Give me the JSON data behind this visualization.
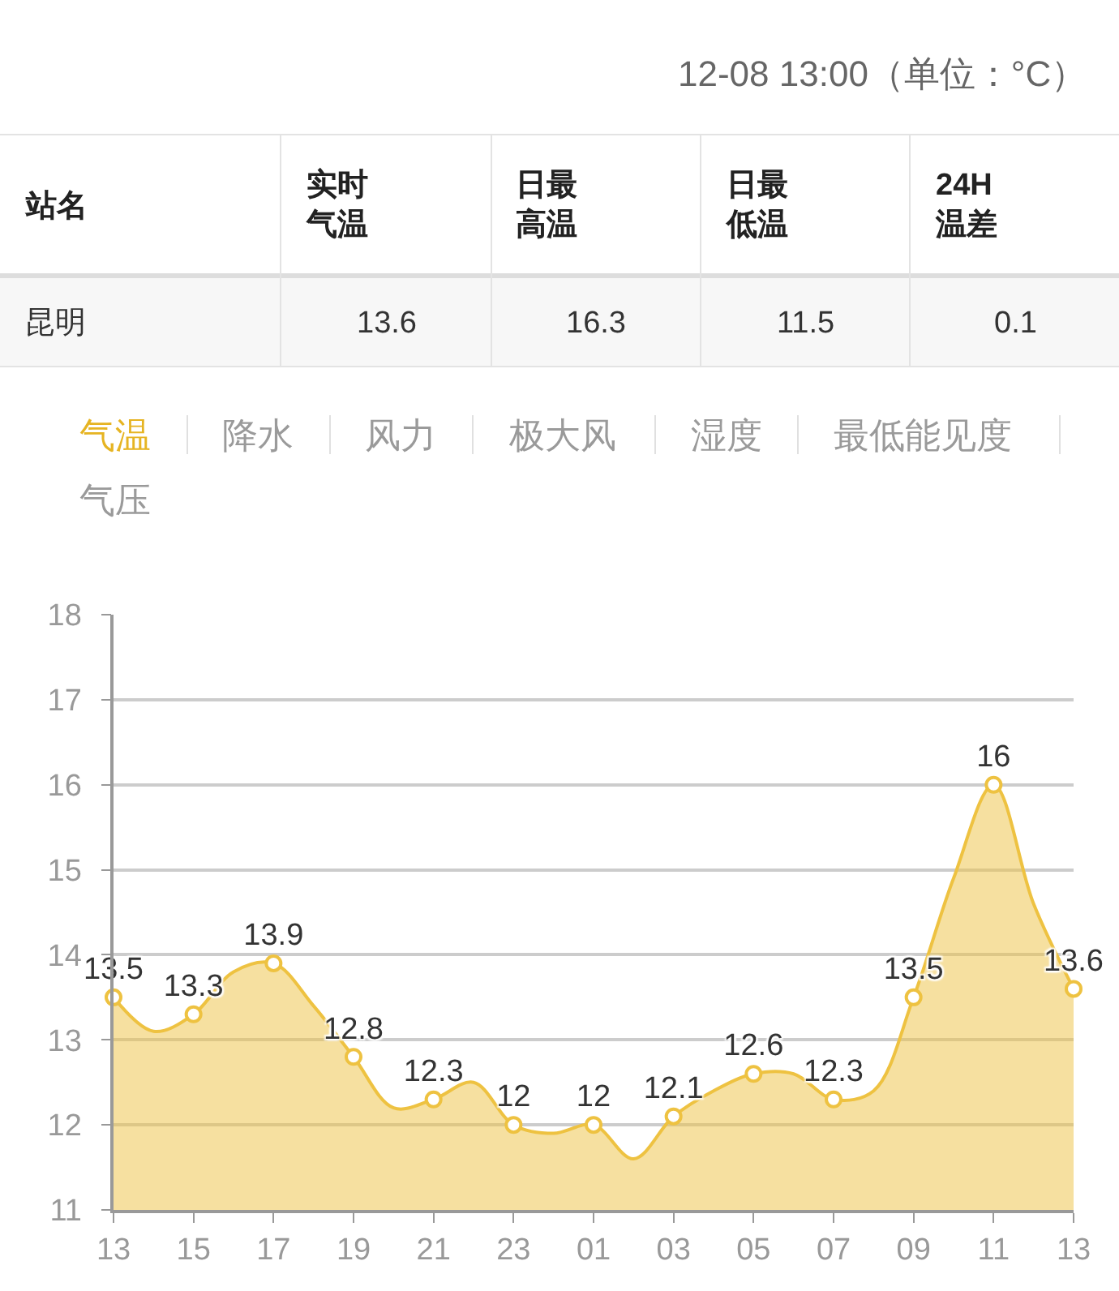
{
  "chart_data": {
    "type": "area",
    "subtitle": "12-08 13:00（单位：°C）",
    "annotations": [
      "站名",
      "实时气温",
      "日最高温",
      "日最低温",
      "24H温差",
      "昆明",
      "13.6",
      "16.3",
      "11.5",
      "0.1",
      "气温",
      "降水",
      "风力",
      "极大风",
      "湿度",
      "最低能见度",
      "气压"
    ],
    "categories": [
      "13",
      null,
      "15",
      null,
      "17",
      null,
      "19",
      null,
      "21",
      null,
      "23",
      null,
      "01",
      null,
      "03",
      null,
      "05",
      null,
      "07",
      null,
      "09",
      null,
      "11",
      null,
      "13"
    ],
    "series": [
      {
        "color": "#eec241",
        "values": [
          13.5,
          13.1,
          13.3,
          13.8,
          13.9,
          13.4,
          12.8,
          12.2,
          12.3,
          12.5,
          12.0,
          11.9,
          12.0,
          11.6,
          12.1,
          12.4,
          12.6,
          12.6,
          12.3,
          12.4,
          13.5,
          14.9,
          16.0,
          14.6,
          13.6
        ],
        "value_labels": [
          "13.5",
          null,
          "13.3",
          null,
          "13.9",
          null,
          "12.8",
          null,
          "12.3",
          null,
          "12",
          null,
          "12",
          null,
          "12.1",
          null,
          "12.6",
          null,
          "12.3",
          null,
          "13.5",
          null,
          "16",
          null,
          "13.6"
        ]
      }
    ],
    "ylim": [
      11,
      18
    ],
    "yticks": [
      11,
      12,
      13,
      14,
      15,
      16,
      17,
      18
    ],
    "grid": "y",
    "marker": "circle"
  }
}
